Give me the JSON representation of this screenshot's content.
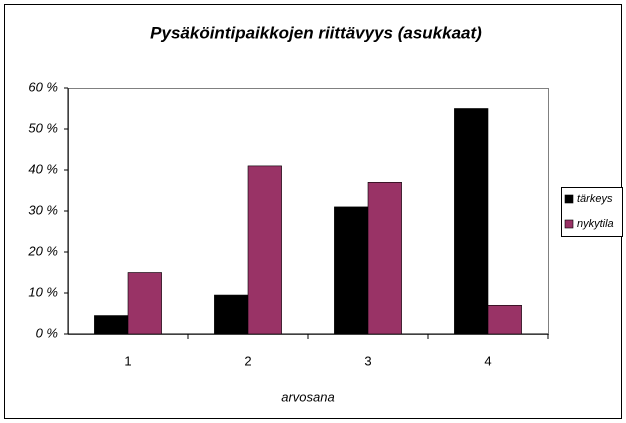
{
  "chart_data": {
    "type": "bar",
    "title": "Pysäköintipaikkojen riittävyys (asukkaat)",
    "x_label": "arvosana",
    "categories": [
      "1",
      "2",
      "3",
      "4"
    ],
    "series": [
      {
        "name": "tärkeys",
        "color": "#000000",
        "values": [
          4.5,
          9.5,
          31,
          55
        ]
      },
      {
        "name": "nykytila",
        "color": "#993366",
        "values": [
          15,
          41,
          37,
          7
        ]
      }
    ],
    "ylim": [
      0,
      60
    ],
    "yticks": [
      {
        "value": 0,
        "label": "0 %"
      },
      {
        "value": 10,
        "label": "10 %"
      },
      {
        "value": 20,
        "label": "20 %"
      },
      {
        "value": 30,
        "label": "30 %"
      },
      {
        "value": 40,
        "label": "40 %"
      },
      {
        "value": 50,
        "label": "50 %"
      },
      {
        "value": 60,
        "label": "60 %"
      }
    ],
    "legend": "right"
  }
}
